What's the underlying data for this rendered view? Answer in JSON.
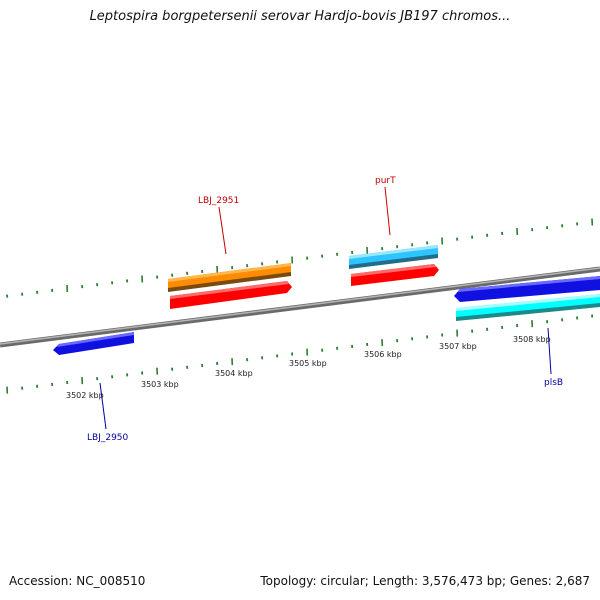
{
  "title": "Leptospira borgpetersenii serovar Hardjo-bovis JB197 chromos...",
  "footer": {
    "accession": "Accession: NC_008510",
    "summary": "Topology: circular; Length: 3,576,473 bp; Genes: 2,687"
  },
  "scale_labels": [
    "3502 kbp",
    "3503 kbp",
    "3504 kbp",
    "3505 kbp",
    "3506 kbp",
    "3507 kbp",
    "3508 kbp"
  ],
  "genes": [
    {
      "name": "LBJ_2951",
      "color": "#c00000"
    },
    {
      "name": "purT",
      "color": "#c00000"
    },
    {
      "name": "LBJ_2950",
      "color": "#0000a0"
    },
    {
      "name": "plsB",
      "color": "#0000a0"
    }
  ],
  "colors": {
    "backbone": "#808080",
    "ticks": "#2e7d32",
    "feature_orange": "#ff8c00",
    "feature_red": "#ff0000",
    "feature_sky": "#2ec4ff",
    "feature_blue": "#1010e0",
    "feature_cyan": "#00ffff"
  }
}
